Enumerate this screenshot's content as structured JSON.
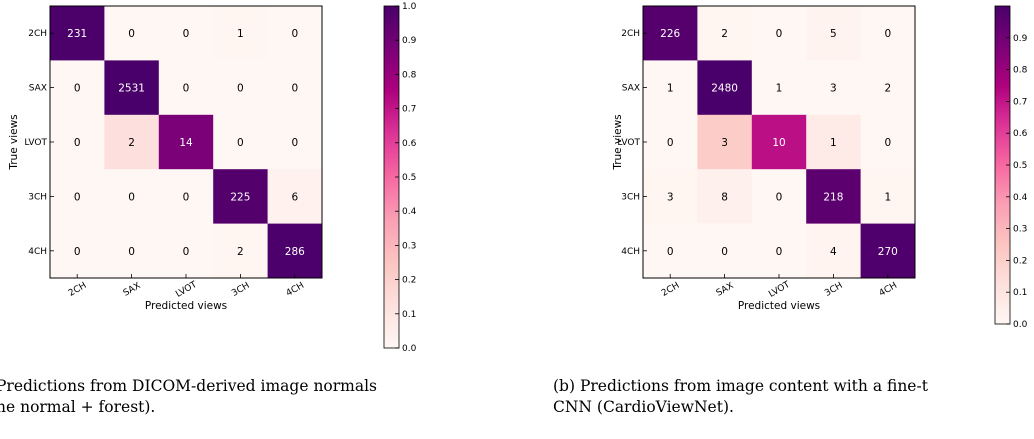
{
  "chart_data": [
    {
      "type": "heatmap",
      "title": "",
      "xlabel": "Predicted views",
      "ylabel": "True views",
      "x_categories": [
        "2CH",
        "SAX",
        "LVOT",
        "3CH",
        "4CH"
      ],
      "y_categories": [
        "2CH",
        "SAX",
        "LVOT",
        "3CH",
        "4CH"
      ],
      "matrix": [
        [
          231,
          0,
          0,
          1,
          0
        ],
        [
          0,
          2531,
          0,
          0,
          0
        ],
        [
          0,
          2,
          14,
          0,
          0
        ],
        [
          0,
          0,
          0,
          225,
          6
        ],
        [
          0,
          0,
          0,
          2,
          286
        ]
      ],
      "colorbar": {
        "range": [
          0.0,
          1.0
        ],
        "ticks": [
          "0.0",
          "0.1",
          "0.2",
          "0.3",
          "0.4",
          "0.5",
          "0.6",
          "0.7",
          "0.8",
          "0.9",
          "1.0"
        ]
      },
      "colormap": "RdPu",
      "caption_line1": "Predictions from DICOM-derived image normals",
      "caption_line2": "ne normal + forest)."
    },
    {
      "type": "heatmap",
      "title": "",
      "xlabel": "Predicted views",
      "ylabel": "True views",
      "x_categories": [
        "2CH",
        "SAX",
        "LVOT",
        "3CH",
        "4CH"
      ],
      "y_categories": [
        "2CH",
        "SAX",
        "LVOT",
        "3CH",
        "4CH"
      ],
      "matrix": [
        [
          226,
          2,
          0,
          5,
          0
        ],
        [
          1,
          2480,
          1,
          3,
          2
        ],
        [
          0,
          3,
          10,
          1,
          0
        ],
        [
          3,
          8,
          0,
          218,
          1
        ],
        [
          0,
          0,
          0,
          4,
          270
        ]
      ],
      "colorbar": {
        "range": [
          0.0,
          1.0
        ],
        "ticks": [
          "0.0",
          "0.1",
          "0.2",
          "0.3",
          "0.4",
          "0.5",
          "0.6",
          "0.7",
          "0.8",
          "0.9"
        ]
      },
      "colormap": "RdPu",
      "caption_line1": "(b) Predictions from image content with a fine-t",
      "caption_line2": "CNN (CardioViewNet)."
    }
  ],
  "colors": {
    "cmap": [
      "#fff7f3",
      "#fde0dd",
      "#fcc5c0",
      "#fa9fb5",
      "#f768a1",
      "#dd3497",
      "#ae017e",
      "#7a0177",
      "#49006a"
    ]
  }
}
